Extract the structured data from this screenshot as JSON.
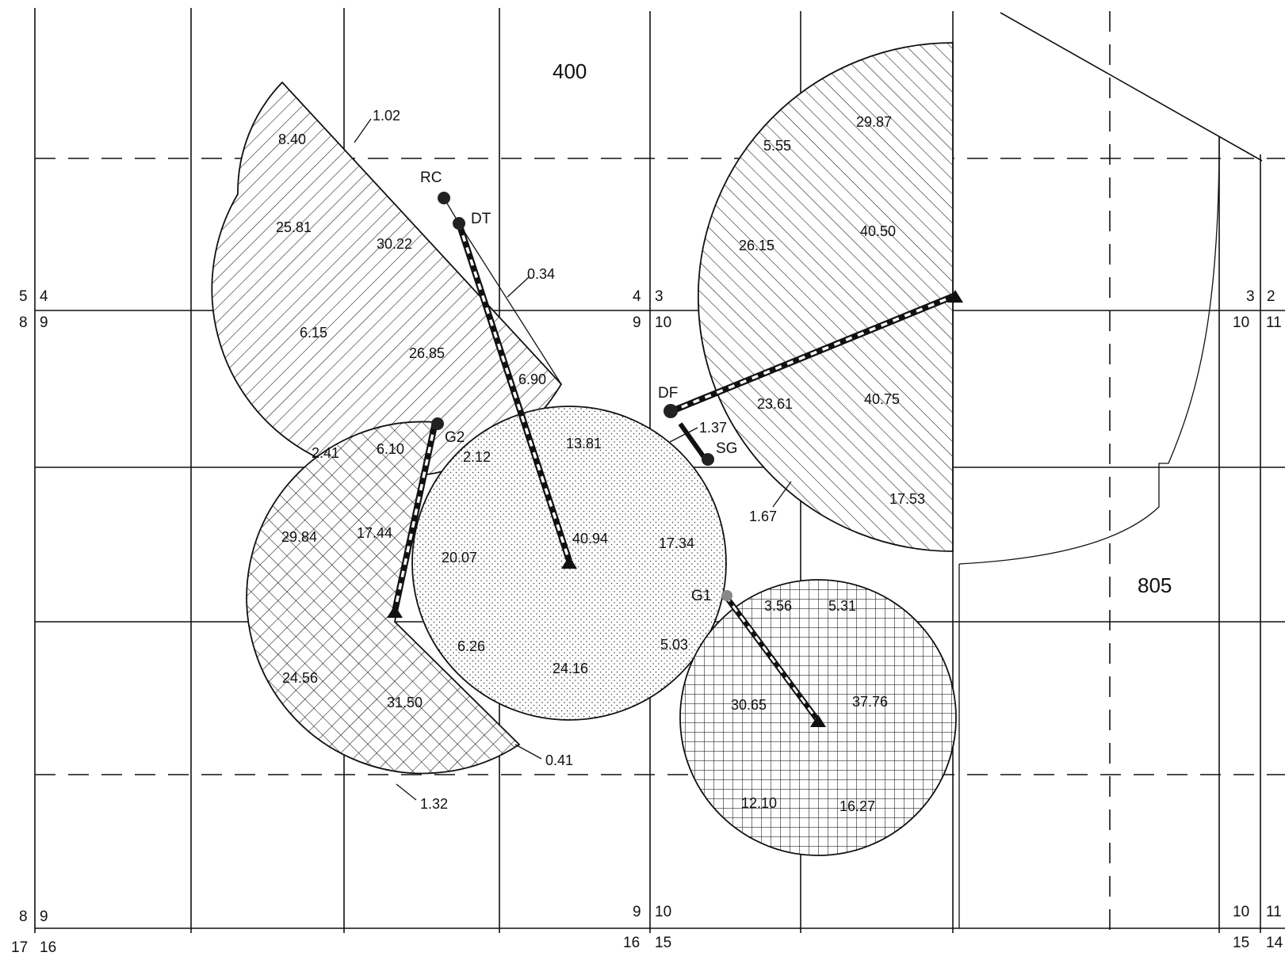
{
  "sections": {
    "north": "400",
    "east": "805"
  },
  "corner_labels": {
    "r1_a": "5",
    "r1_b": "4",
    "r1_c": "4",
    "r1_d": "3",
    "r1_e": "3",
    "r1_f": "2",
    "r2_a": "8",
    "r2_b": "9",
    "r2_c": "9",
    "r2_d": "10",
    "r2_e": "10",
    "r2_f": "11",
    "b1_a": "8",
    "b1_b": "9",
    "b1_c": "9",
    "b1_d": "10",
    "b1_e": "10",
    "b1_f": "11",
    "b2_a": "17",
    "b2_b": "16",
    "b2_c": "16",
    "b2_d": "15",
    "b2_e": "15",
    "b2_f": "14"
  },
  "points": {
    "rc": "RC",
    "dt": "DT",
    "g2": "G2",
    "df": "DF",
    "sg": "SG",
    "g1": "G1"
  },
  "values": {
    "v1_02": "1.02",
    "v8_40": "8.40",
    "v25_81": "25.81",
    "v30_22": "30.22",
    "v0_34": "0.34",
    "v6_15": "6.15",
    "v26_85": "26.85",
    "v6_90": "6.90",
    "v5_55": "5.55",
    "v29_87": "29.87",
    "v26_15": "26.15",
    "v40_50": "40.50",
    "v23_61": "23.61",
    "v40_75": "40.75",
    "v1_37": "1.37",
    "v1_67": "1.67",
    "v17_53": "17.53",
    "v2_41": "2.41",
    "v6_10": "6.10",
    "v2_12": "2.12",
    "v13_81": "13.81",
    "v29_84": "29.84",
    "v17_44": "17.44",
    "v20_07": "20.07",
    "v40_94": "40.94",
    "v17_34": "17.34",
    "v6_26": "6.26",
    "v24_16": "24.16",
    "v5_03": "5.03",
    "v24_56": "24.56",
    "v31_50": "31.50",
    "v0_41": "0.41",
    "v1_32": "1.32",
    "v3_56": "3.56",
    "v5_31": "5.31",
    "v30_65": "30.65",
    "v37_76": "37.76",
    "v12_10": "12.10",
    "v16_27": "16.27"
  }
}
